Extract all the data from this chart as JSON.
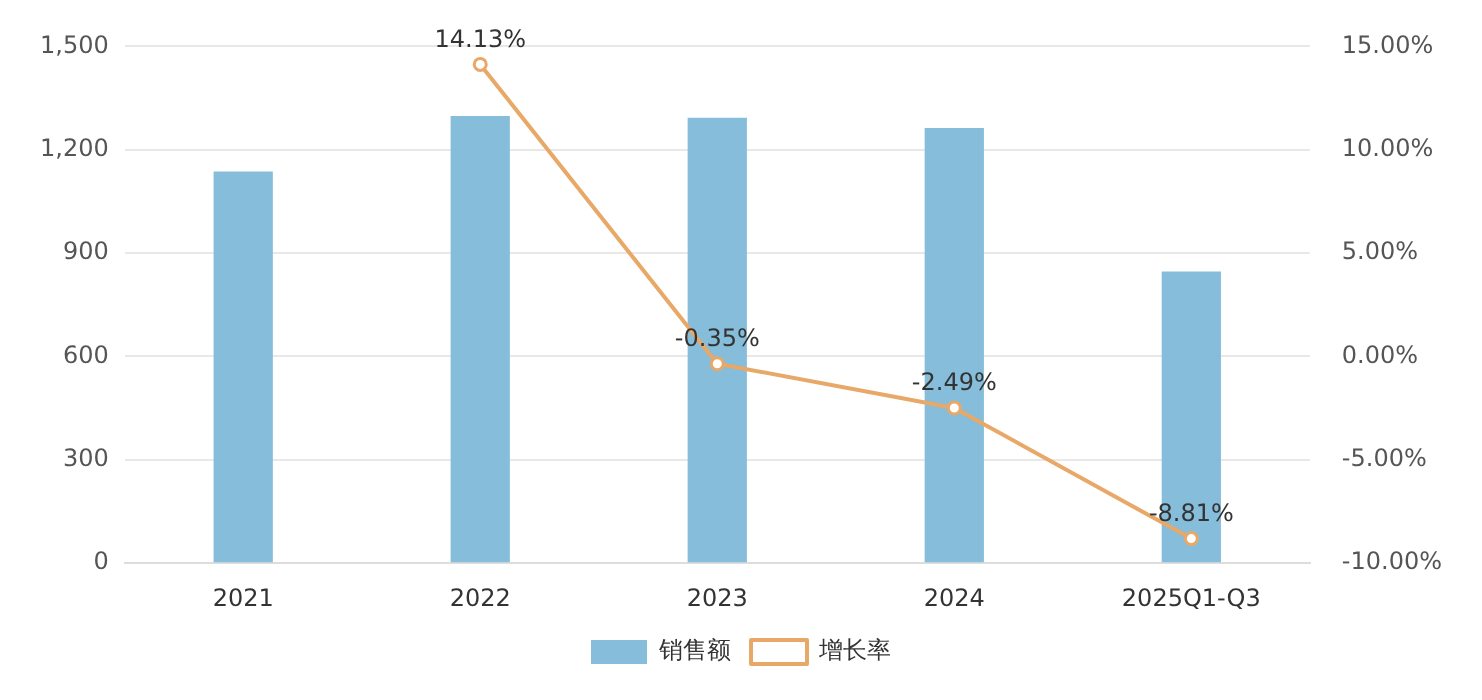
{
  "chart_data": {
    "type": "bar",
    "categories": [
      "2021",
      "2022",
      "2023",
      "2024",
      "2025Q1-Q3"
    ],
    "series": [
      {
        "name": "销售额",
        "color": "#85bdda",
        "values": [
          1137,
          1298,
          1293,
          1263,
          847
        ]
      },
      {
        "name": "增长率",
        "type": "line",
        "axis": "y2",
        "color": "#e8a868",
        "marker": "circle",
        "values": [
          null,
          14.13,
          -0.35,
          -2.49,
          -8.81
        ],
        "value_labels": [
          null,
          "14.13%",
          "-0.35%",
          "-2.49%",
          "-8.81%"
        ]
      }
    ],
    "ylim": [
      0,
      1500
    ],
    "yticks": [
      {
        "value": 0,
        "label": "0"
      },
      {
        "value": 300,
        "label": "300"
      },
      {
        "value": 600,
        "label": "600"
      },
      {
        "value": 900,
        "label": "900"
      },
      {
        "value": 1200,
        "label": "1,200"
      },
      {
        "value": 1500,
        "label": "1,500"
      }
    ],
    "y2lim": [
      -10,
      15
    ],
    "y2ticks": [
      {
        "value": -10,
        "label": "-10.00%"
      },
      {
        "value": -5,
        "label": "-5.00%"
      },
      {
        "value": 0,
        "label": "0.00%"
      },
      {
        "value": 5,
        "label": "5.00%"
      },
      {
        "value": 10,
        "label": "10.00%"
      },
      {
        "value": 15,
        "label": "15.00%"
      }
    ],
    "grid": "y",
    "legend": "bottom"
  }
}
